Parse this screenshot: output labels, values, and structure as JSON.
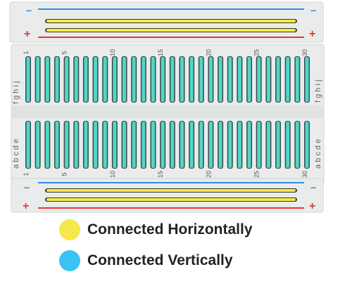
{
  "breadboard": {
    "power_rail_top": {
      "minus": "−",
      "plus": "+"
    },
    "power_rail_bottom": {
      "minus": "−",
      "plus": "+"
    },
    "column_numbers_top": [
      "1",
      "5",
      "10",
      "15",
      "20",
      "25",
      "30"
    ],
    "column_numbers_bottom": [
      "1",
      "5",
      "10",
      "15",
      "20",
      "25",
      "30"
    ],
    "row_letters_top_left": "f g h i j",
    "row_letters_top_right": "f g h i j",
    "row_letters_bottom_left": "a b c d e",
    "row_letters_bottom_right": "a b c d e",
    "column_count": 30
  },
  "legend": {
    "items": [
      {
        "label": "Connected Horizontally",
        "color": "#f5e84b"
      },
      {
        "label": "Connected Vertically",
        "color": "#3cc3f5"
      }
    ]
  },
  "colors": {
    "board": "#e9ecea",
    "panel": "#dfe3e1",
    "blue_line": "#2f8ee6",
    "red_line": "#e8343a",
    "yellow_strip": "#f5e84b",
    "cyan_strip": "#4fd6c9"
  }
}
